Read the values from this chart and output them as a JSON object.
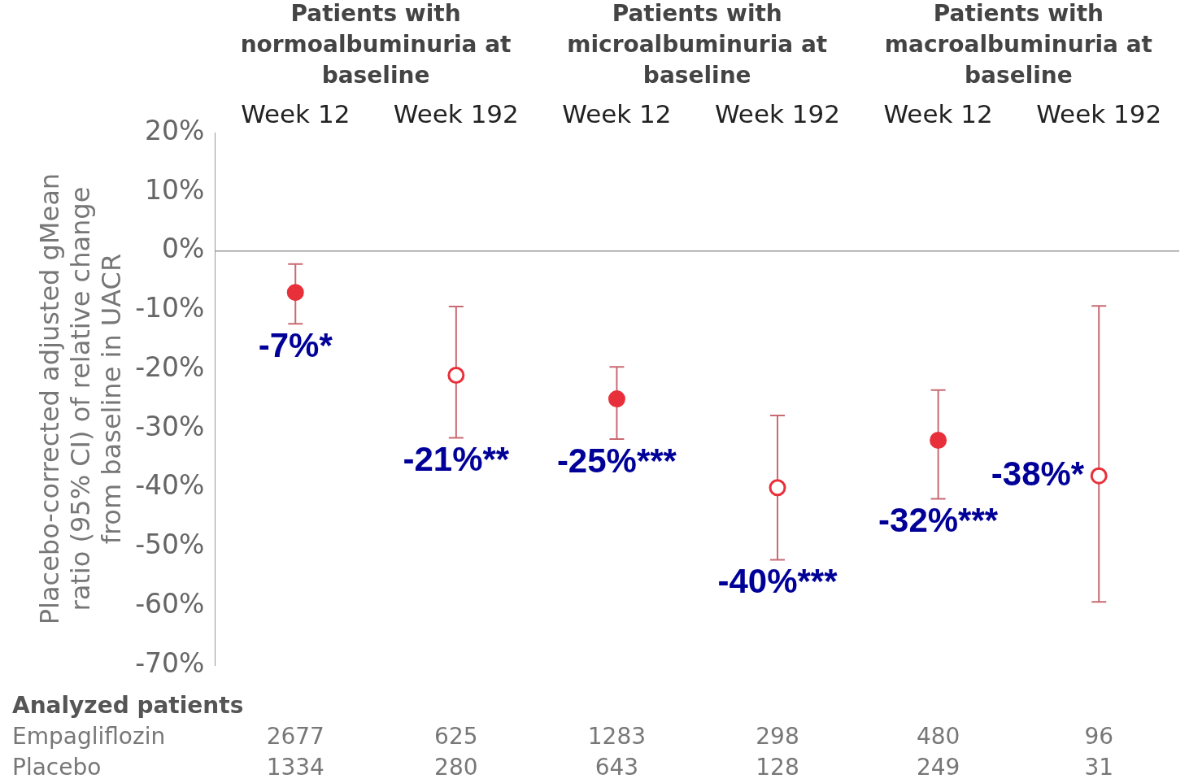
{
  "chart_data": {
    "type": "scatter",
    "ylabel": "Placebo-corrected adjusted gMean ratio (95% CI) of relative change from baseline in UACR",
    "categories": [
      "Week 12",
      "Week 192",
      "Week 12",
      "Week 192",
      "Week 12",
      "Week 192"
    ],
    "series": [
      {
        "color": "#e8303a",
        "values": [
          -7,
          null,
          -25,
          null,
          -32,
          null
        ],
        "errors": [
          [
            -12.3,
            -2.2
          ],
          null,
          [
            -31.8,
            -19.6
          ],
          null,
          [
            -41.9,
            -23.5
          ],
          null
        ],
        "value_labels": [
          "-7%*",
          null,
          "-25%***",
          null,
          "-32%***",
          null
        ]
      },
      {
        "color": "#e8303a",
        "values": [
          null,
          -21,
          null,
          -40,
          null,
          -38
        ],
        "errors": [
          null,
          [
            -31.6,
            -9.4
          ],
          null,
          [
            -52.2,
            -27.8
          ],
          null,
          [
            -59.3,
            -9.3
          ]
        ],
        "value_labels": [
          null,
          "-21%**",
          null,
          "-40%***",
          null,
          "-38%*"
        ]
      }
    ],
    "ylim": [
      -70,
      20
    ],
    "yticks": [
      {
        "value": 20,
        "label": "20%"
      },
      {
        "value": 10,
        "label": "10%"
      },
      {
        "value": 0,
        "label": "0%"
      },
      {
        "value": -10,
        "label": "-10%"
      },
      {
        "value": -20,
        "label": "-20%"
      },
      {
        "value": -30,
        "label": "-30%"
      },
      {
        "value": -40,
        "label": "-40%"
      },
      {
        "value": -50,
        "label": "-50%"
      },
      {
        "value": -60,
        "label": "-60%"
      },
      {
        "value": -70,
        "label": "-70%"
      }
    ],
    "ref_lines": [
      {
        "axis": "y",
        "value": 0,
        "color": "#999999"
      }
    ],
    "grid": false,
    "legend": false,
    "marker": "circle",
    "annotations": [
      "Patients with normoalbuminuria at baseline",
      "Patients with microalbuminuria at baseline",
      "Patients with macroalbuminuria at baseline",
      "Analyzed patients",
      "Empagliflozin",
      "2677",
      "625",
      "1283",
      "298",
      "480",
      "96",
      "Placebo",
      "1334",
      "280",
      "643",
      "128",
      "249",
      "31"
    ]
  }
}
